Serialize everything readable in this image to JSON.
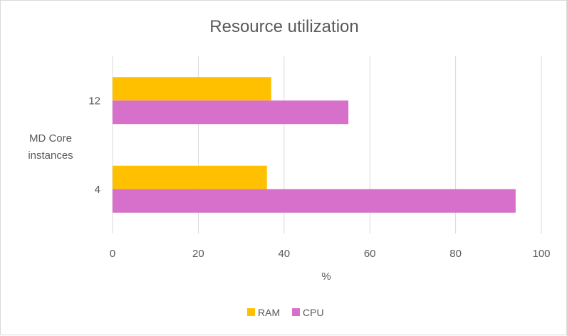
{
  "chart_data": {
    "type": "bar",
    "orientation": "horizontal",
    "title": "Resource utilization",
    "xlabel": "%",
    "ylabel": "MD Core instances",
    "categories": [
      "12",
      "4"
    ],
    "xlim": [
      0,
      100
    ],
    "xticks": [
      "0",
      "20",
      "40",
      "60",
      "80",
      "100"
    ],
    "grid": true,
    "legend_position": "bottom",
    "series": [
      {
        "name": "RAM",
        "color": "#FFC000",
        "values": [
          37,
          36
        ]
      },
      {
        "name": "CPU",
        "color": "#D670CB",
        "values": [
          55,
          94
        ]
      }
    ]
  }
}
